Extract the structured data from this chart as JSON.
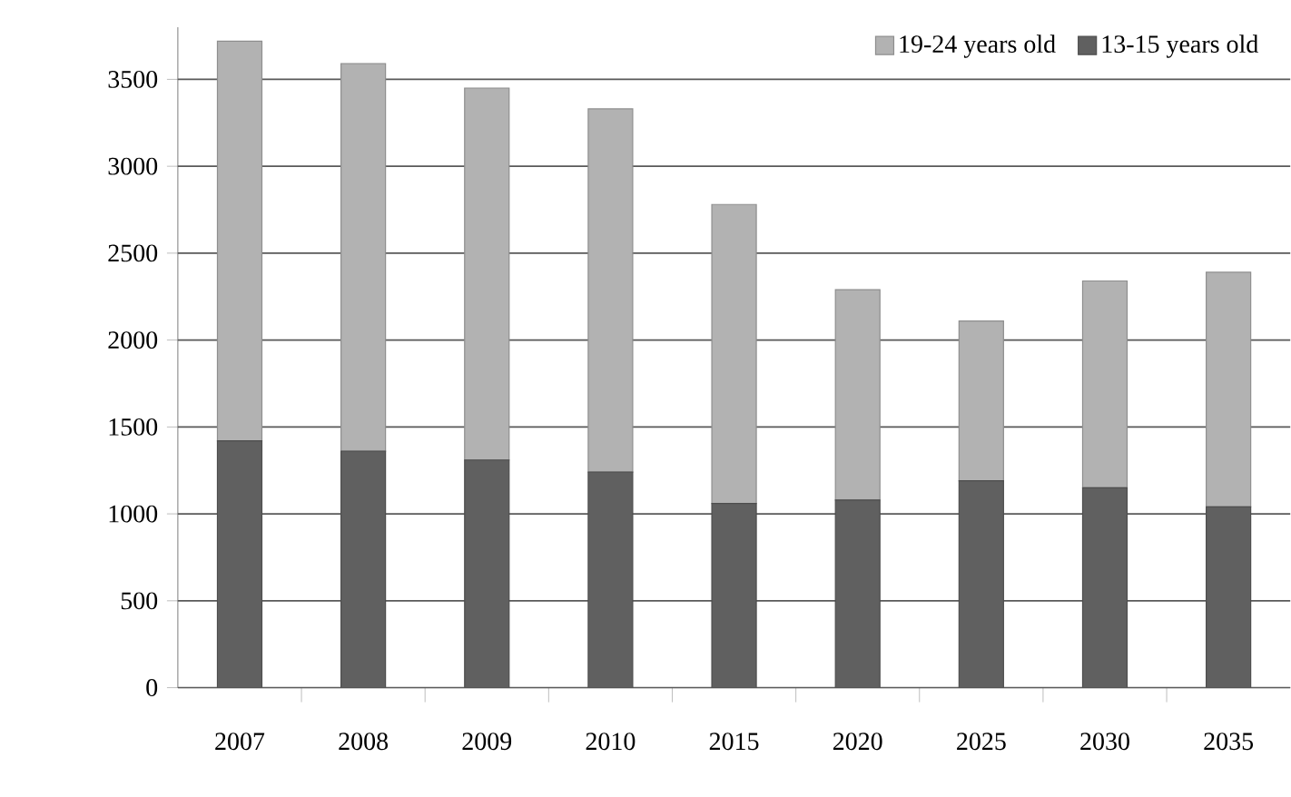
{
  "chart_data": {
    "type": "bar",
    "stacked": true,
    "categories": [
      "2007",
      "2008",
      "2009",
      "2010",
      "2015",
      "2020",
      "2025",
      "2030",
      "2035"
    ],
    "series": [
      {
        "name": "13-15 years old",
        "color": "#606060",
        "values": [
          1420,
          1360,
          1310,
          1240,
          1060,
          1080,
          1190,
          1150,
          1040
        ]
      },
      {
        "name": "19-24 years old",
        "color": "#b2b2b2",
        "values": [
          2300,
          2230,
          2140,
          2090,
          1720,
          1210,
          920,
          1190,
          1350
        ]
      }
    ],
    "ylim": [
      0,
      3800
    ],
    "yticks": [
      0,
      500,
      1000,
      1500,
      2000,
      2500,
      3000,
      3500
    ],
    "grid": "y",
    "legend": "top right"
  }
}
